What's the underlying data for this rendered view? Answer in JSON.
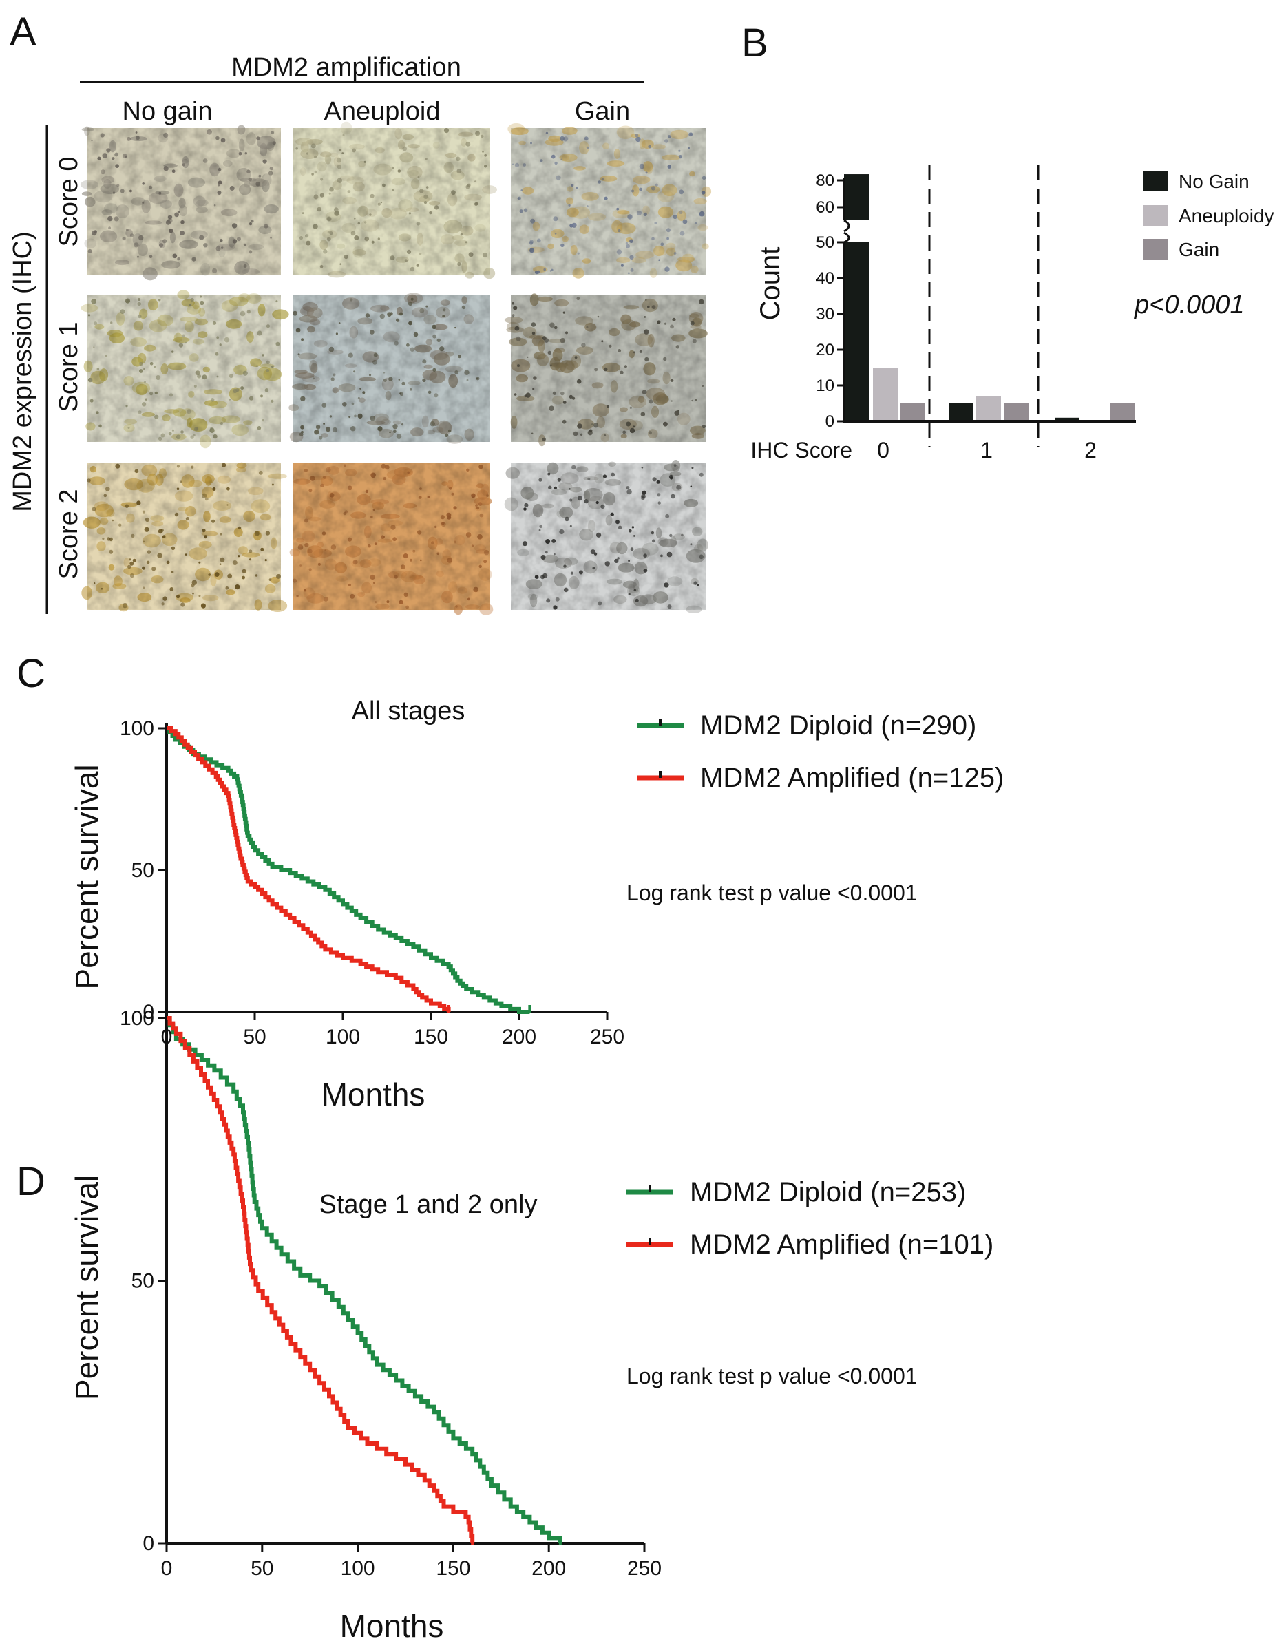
{
  "colors": {
    "no_gain": "#151a17",
    "aneuploidy": "#bdb8bd",
    "gain": "#938c91",
    "diploid": "#1f8a45",
    "amplified": "#e8291c"
  },
  "panel_a": {
    "letter": "A",
    "header": "MDM2 amplification",
    "columns": [
      "No gain",
      "Aneuploid",
      "Gain"
    ],
    "row_axis_label": "MDM2 expression (IHC)",
    "rows": [
      "Score 0",
      "Score 1",
      "Score 2"
    ],
    "tiles": [
      [
        {
          "base": "#d2cdb6",
          "stain": "#8f8a7e",
          "dot": "#6e6860"
        },
        {
          "base": "#dddcbf",
          "stain": "#b6b08c",
          "dot": "#8d8a6e"
        },
        {
          "base": "#c9cbc0",
          "stain": "#c9a85a",
          "dot": "#6f7a92"
        }
      ],
      [
        {
          "base": "#d7d6c4",
          "stain": "#a89a3a",
          "dot": "#8b8a6a"
        },
        {
          "base": "#b9c3c4",
          "stain": "#7a7060",
          "dot": "#5b5a48"
        },
        {
          "base": "#b8bab2",
          "stain": "#7e7050",
          "dot": "#4c4a40"
        }
      ],
      [
        {
          "base": "#e3d6b2",
          "stain": "#b8902e",
          "dot": "#6a5420"
        },
        {
          "base": "#d79e62",
          "stain": "#bf7a3e",
          "dot": "#a06030"
        },
        {
          "base": "#d2d4d4",
          "stain": "#7d7d78",
          "dot": "#2c2c2a"
        }
      ]
    ]
  },
  "panel_b": {
    "letter": "B",
    "pvalue": "p<0.0001",
    "chart_data": {
      "type": "bar",
      "title": "",
      "ylabel": "Count",
      "xlabel": "IHC Score",
      "categories": [
        "0",
        "1",
        "2"
      ],
      "series": [
        {
          "name": "No Gain",
          "values": [
            82,
            5,
            1
          ]
        },
        {
          "name": "Aneuploidy",
          "values": [
            15,
            7,
            0.3
          ]
        },
        {
          "name": "Gain",
          "values": [
            5,
            5,
            5
          ]
        }
      ],
      "ylim_lower": [
        0,
        50
      ],
      "ylim_upper": [
        55,
        80
      ],
      "yticks_lower": [
        "0",
        "10",
        "20",
        "30",
        "40",
        "50"
      ],
      "yticks_upper": [
        "60",
        "80"
      ],
      "legend": [
        "No Gain",
        "Aneuploidy",
        "Gain"
      ]
    }
  },
  "panel_c": {
    "letter": "C",
    "note": "Log rank test p value <0.0001",
    "chart_data": {
      "type": "line",
      "title": "All stages",
      "xlabel": "Months",
      "ylabel": "Percent survival",
      "xlim": [
        0,
        250
      ],
      "ylim": [
        0,
        100
      ],
      "xticks": [
        "0",
        "50",
        "100",
        "150",
        "200",
        "250"
      ],
      "yticks": [
        "0",
        "50",
        "100"
      ],
      "series": [
        {
          "name": "MDM2 Diploid (n=290)",
          "points": [
            [
              0,
              100
            ],
            [
              5,
              96
            ],
            [
              15,
              91
            ],
            [
              25,
              88
            ],
            [
              35,
              85
            ],
            [
              40,
              82
            ],
            [
              43,
              74
            ],
            [
              46,
              62
            ],
            [
              50,
              57
            ],
            [
              60,
              51
            ],
            [
              70,
              49
            ],
            [
              80,
              46
            ],
            [
              90,
              43
            ],
            [
              100,
              38
            ],
            [
              110,
              33
            ],
            [
              120,
              29
            ],
            [
              130,
              26
            ],
            [
              140,
              23
            ],
            [
              150,
              19
            ],
            [
              160,
              16
            ],
            [
              165,
              11
            ],
            [
              170,
              8
            ],
            [
              180,
              5
            ],
            [
              190,
              2
            ],
            [
              195,
              1
            ],
            [
              200,
              0
            ],
            [
              206,
              0
            ]
          ]
        },
        {
          "name": "MDM2 Amplified (n=125)",
          "points": [
            [
              0,
              100
            ],
            [
              5,
              98
            ],
            [
              12,
              93
            ],
            [
              20,
              88
            ],
            [
              28,
              83
            ],
            [
              35,
              76
            ],
            [
              38,
              66
            ],
            [
              42,
              54
            ],
            [
              46,
              46
            ],
            [
              52,
              43
            ],
            [
              60,
              38
            ],
            [
              70,
              33
            ],
            [
              80,
              28
            ],
            [
              90,
              22
            ],
            [
              100,
              19
            ],
            [
              110,
              17
            ],
            [
              120,
              14
            ],
            [
              130,
              12
            ],
            [
              140,
              8
            ],
            [
              145,
              5
            ],
            [
              150,
              3
            ],
            [
              155,
              2
            ],
            [
              160,
              0
            ]
          ]
        }
      ]
    }
  },
  "panel_d": {
    "letter": "D",
    "note": "Log rank test p value <0.0001",
    "chart_data": {
      "type": "line",
      "title": "Stage 1 and 2 only",
      "xlabel": "Months",
      "ylabel": "Percent survival",
      "xlim": [
        0,
        250
      ],
      "ylim": [
        0,
        100
      ],
      "xticks": [
        "0",
        "50",
        "100",
        "150",
        "200",
        "250"
      ],
      "yticks": [
        "0",
        "50",
        "100"
      ],
      "series": [
        {
          "name": "MDM2 Diploid (n=253)",
          "points": [
            [
              0,
              100
            ],
            [
              5,
              96
            ],
            [
              15,
              93
            ],
            [
              25,
              90
            ],
            [
              35,
              86
            ],
            [
              40,
              82
            ],
            [
              43,
              75
            ],
            [
              46,
              65
            ],
            [
              50,
              60
            ],
            [
              60,
              55
            ],
            [
              70,
              51
            ],
            [
              80,
              49
            ],
            [
              90,
              45
            ],
            [
              100,
              40
            ],
            [
              110,
              34
            ],
            [
              120,
              31
            ],
            [
              130,
              28
            ],
            [
              140,
              25
            ],
            [
              150,
              20
            ],
            [
              160,
              17
            ],
            [
              170,
              11
            ],
            [
              180,
              7
            ],
            [
              190,
              4
            ],
            [
              200,
              1
            ],
            [
              206,
              0
            ]
          ]
        },
        {
          "name": "MDM2 Amplified (n=101)",
          "points": [
            [
              0,
              100
            ],
            [
              5,
              97
            ],
            [
              12,
              93
            ],
            [
              20,
              88
            ],
            [
              28,
              82
            ],
            [
              35,
              74
            ],
            [
              40,
              64
            ],
            [
              44,
              52
            ],
            [
              48,
              48
            ],
            [
              55,
              44
            ],
            [
              65,
              38
            ],
            [
              75,
              33
            ],
            [
              85,
              28
            ],
            [
              95,
              22
            ],
            [
              105,
              19
            ],
            [
              115,
              17
            ],
            [
              125,
              15
            ],
            [
              135,
              12
            ],
            [
              140,
              10
            ],
            [
              145,
              7
            ],
            [
              150,
              6
            ],
            [
              155,
              6
            ],
            [
              158,
              4
            ],
            [
              160,
              0
            ]
          ]
        }
      ]
    }
  }
}
